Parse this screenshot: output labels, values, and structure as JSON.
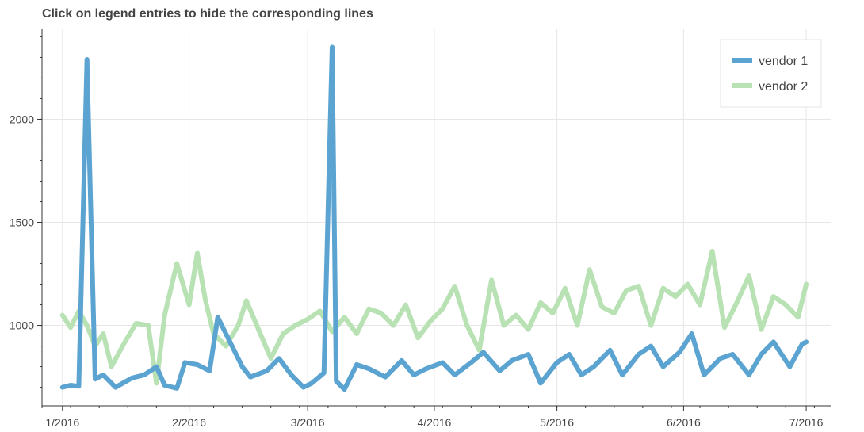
{
  "chart_data": {
    "type": "line",
    "title": "Click on legend entries to hide the corresponding lines",
    "xlabel": "",
    "ylabel": "",
    "x_axis": {
      "type": "date",
      "range": [
        "2015-12-27",
        "2016-07-07"
      ],
      "ticks": [
        {
          "date": "2016-01-01",
          "label": "1/2016"
        },
        {
          "date": "2016-02-01",
          "label": "2/2016"
        },
        {
          "date": "2016-03-01",
          "label": "3/2016"
        },
        {
          "date": "2016-04-01",
          "label": "4/2016"
        },
        {
          "date": "2016-05-01",
          "label": "5/2016"
        },
        {
          "date": "2016-06-01",
          "label": "6/2016"
        },
        {
          "date": "2016-07-01",
          "label": "7/2016"
        }
      ]
    },
    "y_axis": {
      "range": [
        610,
        2440
      ],
      "ticks": [
        1000,
        1500,
        2000
      ]
    },
    "grid": true,
    "legend": {
      "placement": "top-right"
    },
    "series": [
      {
        "name": "vendor 1",
        "color": "#5ba3d0",
        "points": [
          [
            "2016-01-01",
            700
          ],
          [
            "2016-01-03",
            710
          ],
          [
            "2016-01-05",
            705
          ],
          [
            "2016-01-06",
            1500
          ],
          [
            "2016-01-07",
            2290
          ],
          [
            "2016-01-08",
            1500
          ],
          [
            "2016-01-09",
            740
          ],
          [
            "2016-01-11",
            760
          ],
          [
            "2016-01-14",
            700
          ],
          [
            "2016-01-18",
            745
          ],
          [
            "2016-01-21",
            760
          ],
          [
            "2016-01-24",
            800
          ],
          [
            "2016-01-26",
            710
          ],
          [
            "2016-01-29",
            695
          ],
          [
            "2016-01-31",
            820
          ],
          [
            "2016-02-03",
            810
          ],
          [
            "2016-02-06",
            780
          ],
          [
            "2016-02-08",
            1040
          ],
          [
            "2016-02-11",
            920
          ],
          [
            "2016-02-14",
            800
          ],
          [
            "2016-02-16",
            750
          ],
          [
            "2016-02-20",
            780
          ],
          [
            "2016-02-23",
            840
          ],
          [
            "2016-02-26",
            760
          ],
          [
            "2016-02-29",
            700
          ],
          [
            "2016-03-02",
            720
          ],
          [
            "2016-03-05",
            770
          ],
          [
            "2016-03-07",
            2350
          ],
          [
            "2016-03-08",
            730
          ],
          [
            "2016-03-10",
            690
          ],
          [
            "2016-03-13",
            810
          ],
          [
            "2016-03-16",
            790
          ],
          [
            "2016-03-20",
            750
          ],
          [
            "2016-03-24",
            830
          ],
          [
            "2016-03-27",
            760
          ],
          [
            "2016-03-30",
            790
          ],
          [
            "2016-04-03",
            820
          ],
          [
            "2016-04-06",
            760
          ],
          [
            "2016-04-10",
            820
          ],
          [
            "2016-04-13",
            870
          ],
          [
            "2016-04-17",
            780
          ],
          [
            "2016-04-20",
            830
          ],
          [
            "2016-04-24",
            860
          ],
          [
            "2016-04-27",
            720
          ],
          [
            "2016-05-01",
            820
          ],
          [
            "2016-05-04",
            860
          ],
          [
            "2016-05-07",
            760
          ],
          [
            "2016-05-10",
            800
          ],
          [
            "2016-05-14",
            880
          ],
          [
            "2016-05-17",
            760
          ],
          [
            "2016-05-21",
            860
          ],
          [
            "2016-05-24",
            900
          ],
          [
            "2016-05-27",
            800
          ],
          [
            "2016-05-31",
            870
          ],
          [
            "2016-06-03",
            960
          ],
          [
            "2016-06-06",
            760
          ],
          [
            "2016-06-10",
            840
          ],
          [
            "2016-06-13",
            860
          ],
          [
            "2016-06-17",
            760
          ],
          [
            "2016-06-20",
            860
          ],
          [
            "2016-06-23",
            920
          ],
          [
            "2016-06-27",
            800
          ],
          [
            "2016-06-30",
            910
          ],
          [
            "2016-07-01",
            920
          ]
        ]
      },
      {
        "name": "vendor 2",
        "color": "#b8e2b4",
        "points": [
          [
            "2016-01-01",
            1050
          ],
          [
            "2016-01-03",
            990
          ],
          [
            "2016-01-05",
            1070
          ],
          [
            "2016-01-07",
            1000
          ],
          [
            "2016-01-09",
            900
          ],
          [
            "2016-01-11",
            960
          ],
          [
            "2016-01-13",
            800
          ],
          [
            "2016-01-16",
            910
          ],
          [
            "2016-01-19",
            1010
          ],
          [
            "2016-01-22",
            1000
          ],
          [
            "2016-01-24",
            720
          ],
          [
            "2016-01-26",
            1050
          ],
          [
            "2016-01-29",
            1300
          ],
          [
            "2016-02-01",
            1100
          ],
          [
            "2016-02-03",
            1350
          ],
          [
            "2016-02-05",
            1120
          ],
          [
            "2016-02-07",
            960
          ],
          [
            "2016-02-10",
            900
          ],
          [
            "2016-02-13",
            1000
          ],
          [
            "2016-02-15",
            1120
          ],
          [
            "2016-02-18",
            980
          ],
          [
            "2016-02-21",
            840
          ],
          [
            "2016-02-24",
            960
          ],
          [
            "2016-02-27",
            1000
          ],
          [
            "2016-03-01",
            1030
          ],
          [
            "2016-03-04",
            1070
          ],
          [
            "2016-03-07",
            970
          ],
          [
            "2016-03-10",
            1040
          ],
          [
            "2016-03-13",
            960
          ],
          [
            "2016-03-16",
            1080
          ],
          [
            "2016-03-19",
            1060
          ],
          [
            "2016-03-22",
            1000
          ],
          [
            "2016-03-25",
            1100
          ],
          [
            "2016-03-28",
            940
          ],
          [
            "2016-03-31",
            1020
          ],
          [
            "2016-04-03",
            1080
          ],
          [
            "2016-04-06",
            1190
          ],
          [
            "2016-04-09",
            1000
          ],
          [
            "2016-04-12",
            880
          ],
          [
            "2016-04-15",
            1220
          ],
          [
            "2016-04-18",
            1000
          ],
          [
            "2016-04-21",
            1050
          ],
          [
            "2016-04-24",
            980
          ],
          [
            "2016-04-27",
            1110
          ],
          [
            "2016-04-30",
            1060
          ],
          [
            "2016-05-03",
            1180
          ],
          [
            "2016-05-06",
            1000
          ],
          [
            "2016-05-09",
            1270
          ],
          [
            "2016-05-12",
            1090
          ],
          [
            "2016-05-15",
            1060
          ],
          [
            "2016-05-18",
            1170
          ],
          [
            "2016-05-21",
            1190
          ],
          [
            "2016-05-24",
            1000
          ],
          [
            "2016-05-27",
            1180
          ],
          [
            "2016-05-30",
            1140
          ],
          [
            "2016-06-02",
            1200
          ],
          [
            "2016-06-05",
            1100
          ],
          [
            "2016-06-08",
            1360
          ],
          [
            "2016-06-11",
            990
          ],
          [
            "2016-06-14",
            1110
          ],
          [
            "2016-06-17",
            1240
          ],
          [
            "2016-06-20",
            980
          ],
          [
            "2016-06-23",
            1140
          ],
          [
            "2016-06-26",
            1100
          ],
          [
            "2016-06-29",
            1040
          ],
          [
            "2016-07-01",
            1200
          ]
        ]
      }
    ]
  }
}
